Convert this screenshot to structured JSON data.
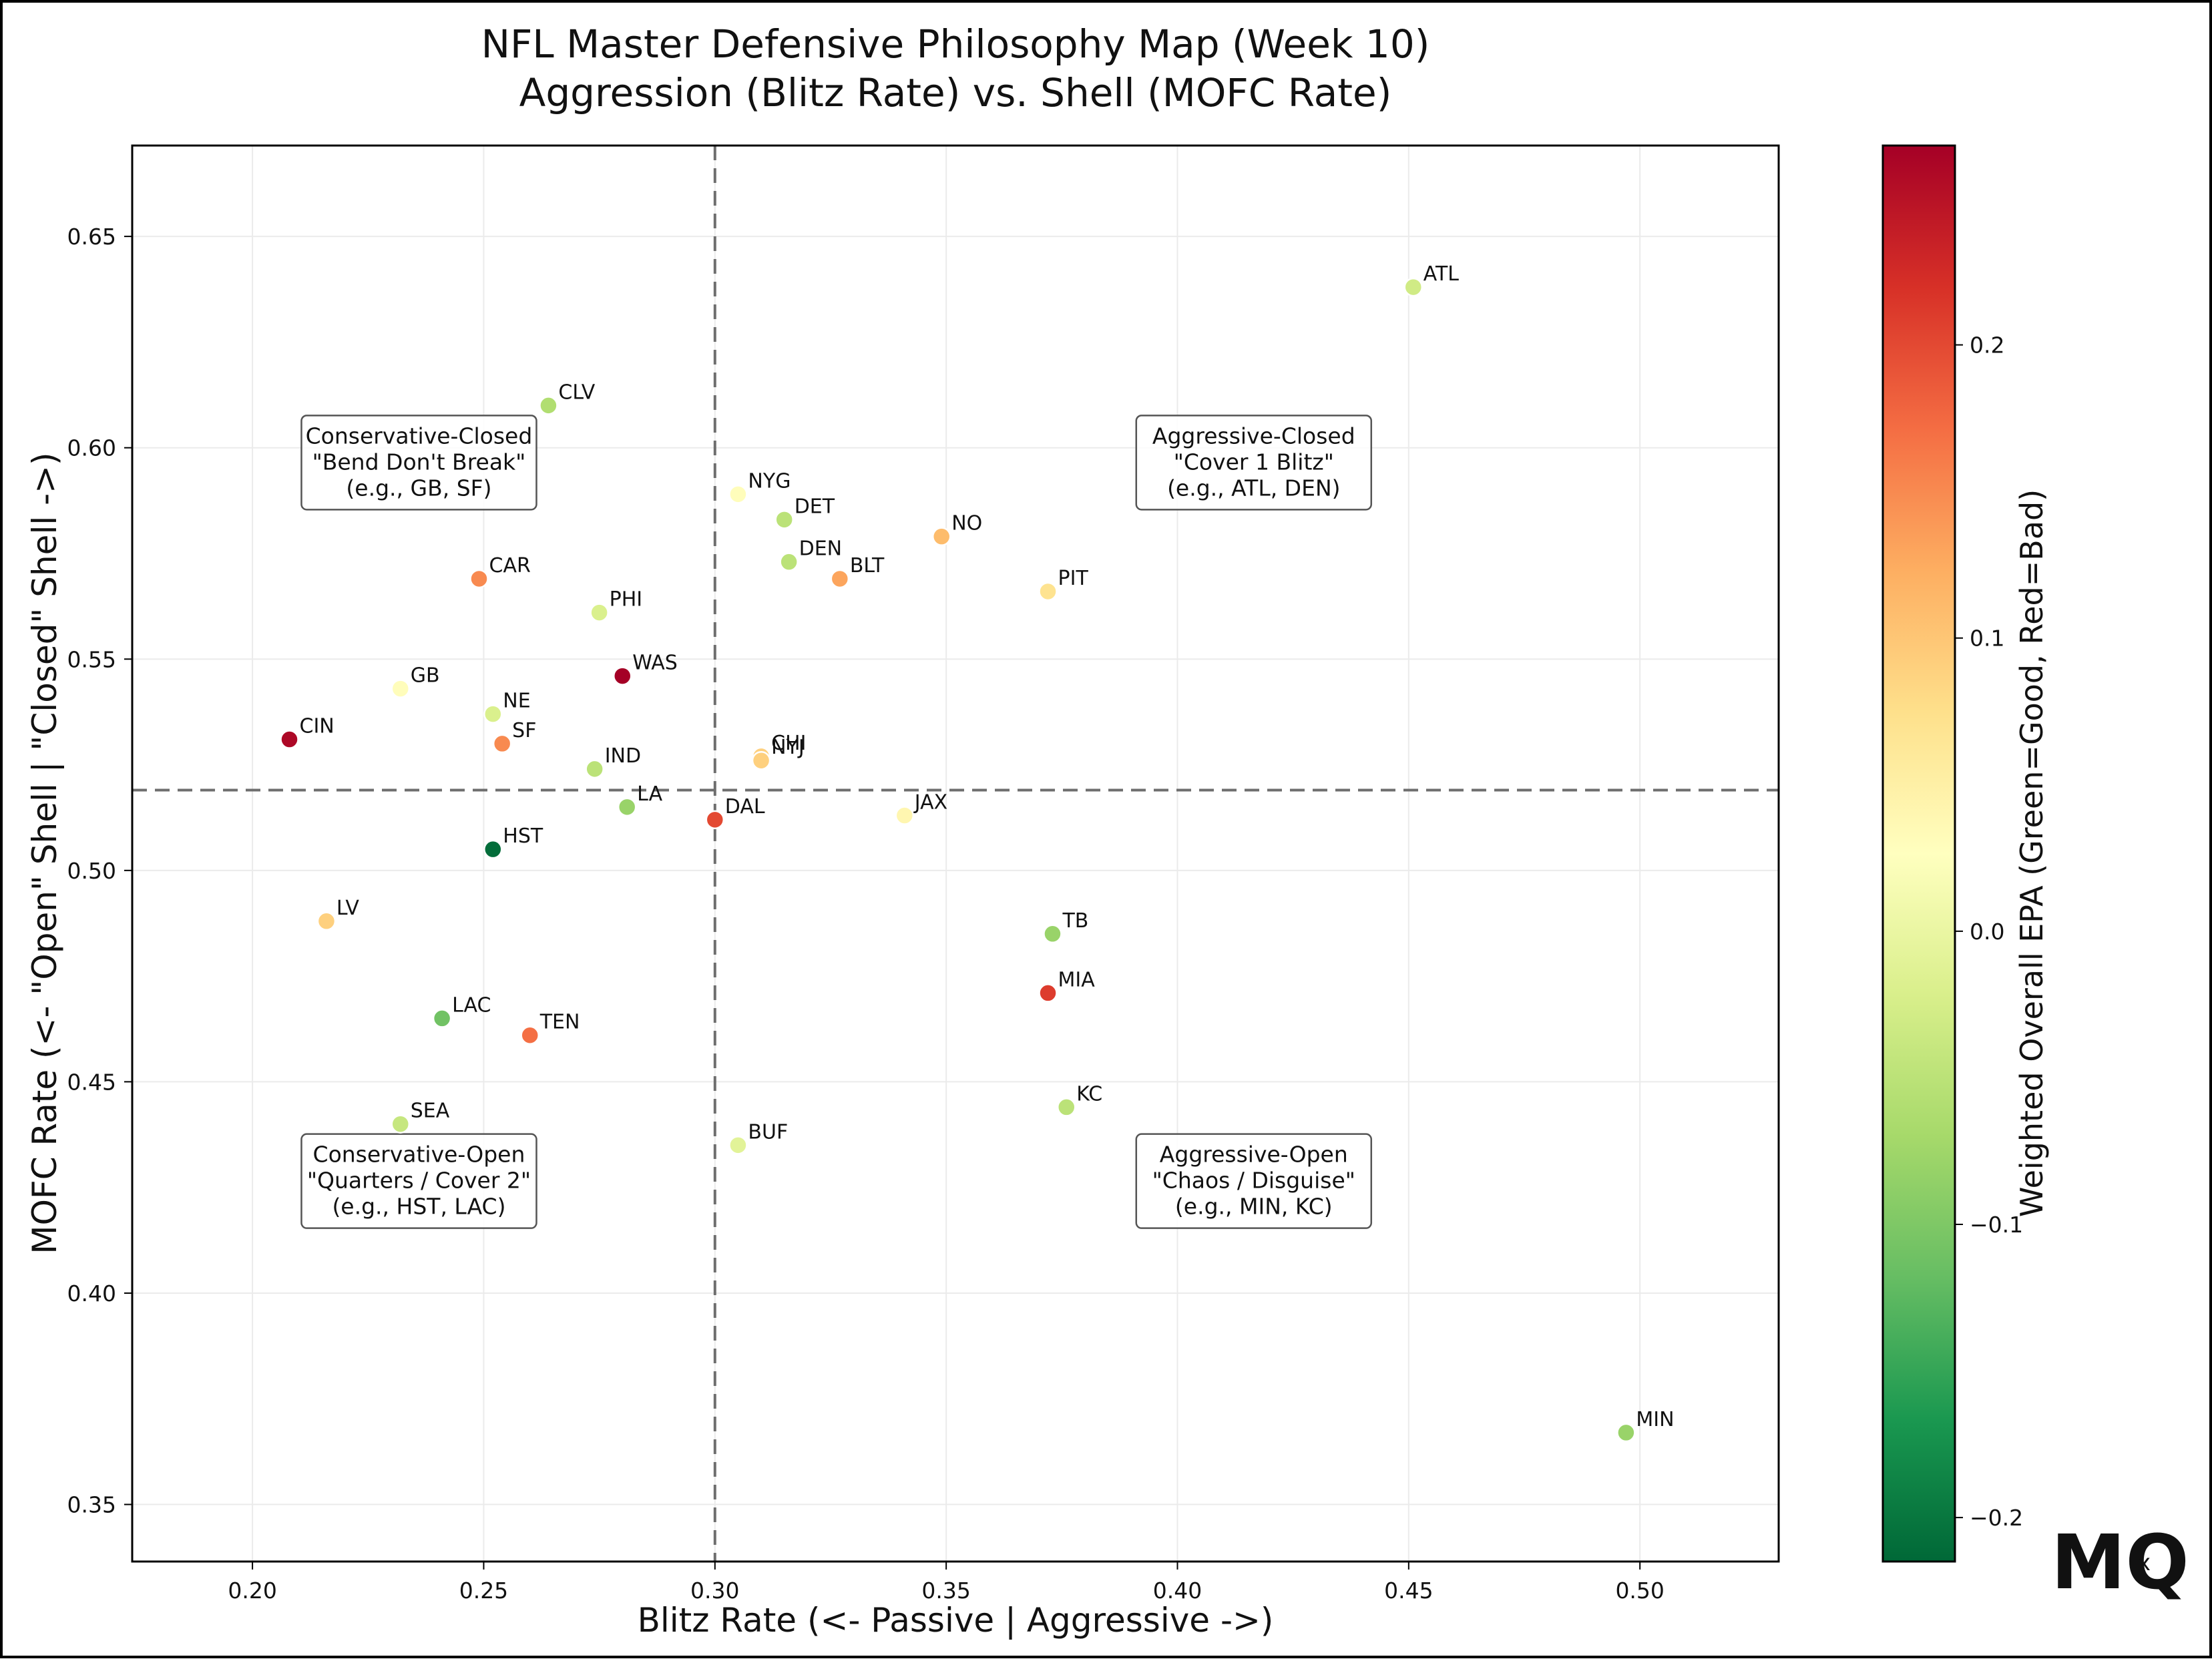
{
  "chart_data": {
    "type": "scatter",
    "title": [
      "NFL Master Defensive Philosophy Map (Week 10)",
      "Aggression (Blitz Rate) vs. Shell (MOFC Rate)"
    ],
    "xlabel": "Blitz Rate (<- Passive | Aggressive ->)",
    "ylabel": "MOFC Rate (<- \"Open\" Shell | \"Closed\" Shell ->)",
    "xlim": [
      0.174,
      0.53
    ],
    "ylim": [
      0.3365,
      0.6715
    ],
    "xticks": [
      "0.20",
      "0.25",
      "0.30",
      "0.35",
      "0.40",
      "0.45",
      "0.50"
    ],
    "yticks": [
      "0.35",
      "0.40",
      "0.45",
      "0.50",
      "0.55",
      "0.60",
      "0.65"
    ],
    "grid": true,
    "reference_lines": {
      "x": 0.3,
      "y": 0.519,
      "style": "dashed"
    },
    "colorbar": {
      "label": "Weighted Overall EPA (Green=Good, Red=Bad)",
      "range": [
        -0.215,
        0.268
      ],
      "ticks": [
        "0.2",
        "0.1",
        "0.0",
        "−0.1",
        "−0.2"
      ],
      "colormap": "RdYlGn_r"
    },
    "points": [
      {
        "team": "ATL",
        "x": 0.451,
        "y": 0.638,
        "epa": -0.03
      },
      {
        "team": "CLV",
        "x": 0.264,
        "y": 0.61,
        "epa": -0.06
      },
      {
        "team": "NYG",
        "x": 0.305,
        "y": 0.589,
        "epa": 0.03
      },
      {
        "team": "DET",
        "x": 0.315,
        "y": 0.583,
        "epa": -0.05
      },
      {
        "team": "NO",
        "x": 0.349,
        "y": 0.579,
        "epa": 0.11
      },
      {
        "team": "DEN",
        "x": 0.316,
        "y": 0.573,
        "epa": -0.05
      },
      {
        "team": "BLT",
        "x": 0.327,
        "y": 0.569,
        "epa": 0.13
      },
      {
        "team": "CAR",
        "x": 0.249,
        "y": 0.569,
        "epa": 0.15
      },
      {
        "team": "PIT",
        "x": 0.372,
        "y": 0.566,
        "epa": 0.07
      },
      {
        "team": "PHI",
        "x": 0.275,
        "y": 0.561,
        "epa": -0.02
      },
      {
        "team": "WAS",
        "x": 0.28,
        "y": 0.546,
        "epa": 0.27
      },
      {
        "team": "GB",
        "x": 0.232,
        "y": 0.543,
        "epa": 0.03
      },
      {
        "team": "NE",
        "x": 0.252,
        "y": 0.537,
        "epa": -0.02
      },
      {
        "team": "CIN",
        "x": 0.208,
        "y": 0.531,
        "epa": 0.26
      },
      {
        "team": "SF",
        "x": 0.254,
        "y": 0.53,
        "epa": 0.15
      },
      {
        "team": "CHI",
        "x": 0.31,
        "y": 0.527,
        "epa": 0.09
      },
      {
        "team": "NYJ",
        "x": 0.31,
        "y": 0.526,
        "epa": 0.09
      },
      {
        "team": "IND",
        "x": 0.274,
        "y": 0.524,
        "epa": -0.05
      },
      {
        "team": "LA",
        "x": 0.281,
        "y": 0.515,
        "epa": -0.08
      },
      {
        "team": "JAX",
        "x": 0.341,
        "y": 0.513,
        "epa": 0.04
      },
      {
        "team": "DAL",
        "x": 0.3,
        "y": 0.512,
        "epa": 0.2
      },
      {
        "team": "HST",
        "x": 0.252,
        "y": 0.505,
        "epa": -0.21
      },
      {
        "team": "LV",
        "x": 0.216,
        "y": 0.488,
        "epa": 0.09
      },
      {
        "team": "TB",
        "x": 0.373,
        "y": 0.485,
        "epa": -0.08
      },
      {
        "team": "MIA",
        "x": 0.372,
        "y": 0.471,
        "epa": 0.21
      },
      {
        "team": "LAC",
        "x": 0.241,
        "y": 0.465,
        "epa": -0.11
      },
      {
        "team": "TEN",
        "x": 0.26,
        "y": 0.461,
        "epa": 0.17
      },
      {
        "team": "KC",
        "x": 0.376,
        "y": 0.444,
        "epa": -0.05
      },
      {
        "team": "SEA",
        "x": 0.232,
        "y": 0.44,
        "epa": -0.04
      },
      {
        "team": "BUF",
        "x": 0.305,
        "y": 0.435,
        "epa": -0.01
      },
      {
        "team": "MIN",
        "x": 0.497,
        "y": 0.367,
        "epa": -0.08
      }
    ],
    "quadrant_labels": [
      {
        "id": "conservative-closed",
        "lines": [
          "Conservative-Closed",
          "\"Bend Don't Break\"",
          "(e.g., GB, SF)"
        ],
        "x": 0.236,
        "y": 0.5965
      },
      {
        "id": "aggressive-closed",
        "lines": [
          "Aggressive-Closed",
          "\"Cover 1 Blitz\"",
          "(e.g., ATL, DEN)"
        ],
        "x": 0.4165,
        "y": 0.5965
      },
      {
        "id": "conservative-open",
        "lines": [
          "Conservative-Open",
          "\"Quarters / Cover 2\"",
          "(e.g., HST, LAC)"
        ],
        "x": 0.236,
        "y": 0.4265
      },
      {
        "id": "aggressive-open",
        "lines": [
          "Aggressive-Open",
          "\"Chaos / Disguise\"",
          "(e.g., MIN, KC)"
        ],
        "x": 0.4165,
        "y": 0.4265
      }
    ]
  },
  "logo": {
    "text": "MQ",
    "mark": "x"
  }
}
